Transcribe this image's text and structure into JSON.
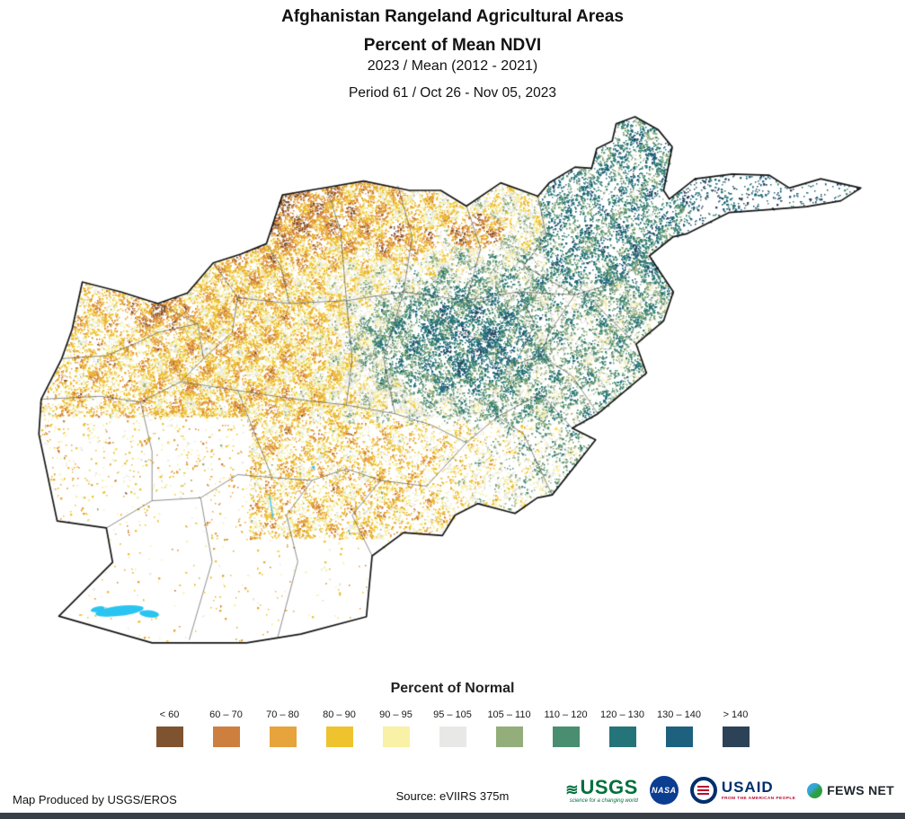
{
  "title": {
    "line1": "Afghanistan Rangeland Agricultural Areas",
    "line2": "Percent of Mean NDVI",
    "line3": "2023 / Mean (2012 - 2021)",
    "line4": "Period 61 / Oct 26 - Nov 05, 2023"
  },
  "legend": {
    "title": "Percent of Normal",
    "classes": [
      {
        "label": "< 60",
        "color": "#7f5330"
      },
      {
        "label": "60 – 70",
        "color": "#cd7f3f"
      },
      {
        "label": "70 – 80",
        "color": "#e7a33c"
      },
      {
        "label": "80 – 90",
        "color": "#eec32e"
      },
      {
        "label": "90 – 95",
        "color": "#f8f1a6"
      },
      {
        "label": "95 – 105",
        "color": "#e8e8e6"
      },
      {
        "label": "105 – 110",
        "color": "#93ad7b"
      },
      {
        "label": "110 – 120",
        "color": "#4a8e72"
      },
      {
        "label": "120 – 130",
        "color": "#25747a"
      },
      {
        "label": "130 – 140",
        "color": "#1d617f"
      },
      {
        "label": "> 140",
        "color": "#2c4257"
      }
    ]
  },
  "map": {
    "region": "Afghanistan",
    "water_color": "#2ac4f2",
    "country_border_color": "#141414",
    "province_border_color": "#4d4d4d"
  },
  "footer": {
    "produced_by": "Map Produced by USGS/EROS",
    "source": "Source: eVIIRS 375m",
    "usgs": {
      "name": "USGS",
      "tagline": "science for a changing world"
    },
    "nasa": {
      "name": "NASA"
    },
    "usaid": {
      "name": "USAID",
      "tagline": "FROM THE AMERICAN PEOPLE"
    },
    "fewsnet": {
      "name": "FEWS NET"
    }
  },
  "brand_colors": {
    "usgs_green": "#00703c",
    "nasa_blue": "#0b3d91",
    "usaid_blue": "#002f6c",
    "usaid_red": "#ba0c2f",
    "fews_green": "#2f9e41"
  }
}
